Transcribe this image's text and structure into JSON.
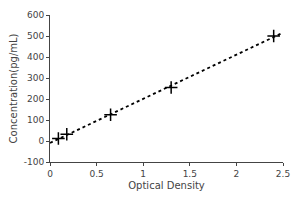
{
  "chart_data": {
    "type": "scatter",
    "xlabel": "Optical Density",
    "ylabel": "Concentration(pg/mL)",
    "series": [
      {
        "type": "line",
        "x": [
          0,
          2.5
        ],
        "values": [
          -9.379,
          515.997
        ],
        "color": "black",
        "line_style": "dotted"
      },
      {
        "type": "scatter",
        "x": [
          0.09,
          0.18,
          0.65,
          1.3,
          2.4
        ],
        "values": [
          12,
          32,
          125,
          255,
          500
        ],
        "color": "black",
        "marker": "cross"
      }
    ],
    "xlim": [
      0,
      2.5
    ],
    "ylim": [
      -100,
      600
    ],
    "xticks": [
      0,
      0.5,
      1,
      1.5,
      2,
      2.5
    ],
    "yticks": [
      -100,
      0,
      100,
      200,
      300,
      400,
      500,
      600
    ],
    "grid": false
  }
}
